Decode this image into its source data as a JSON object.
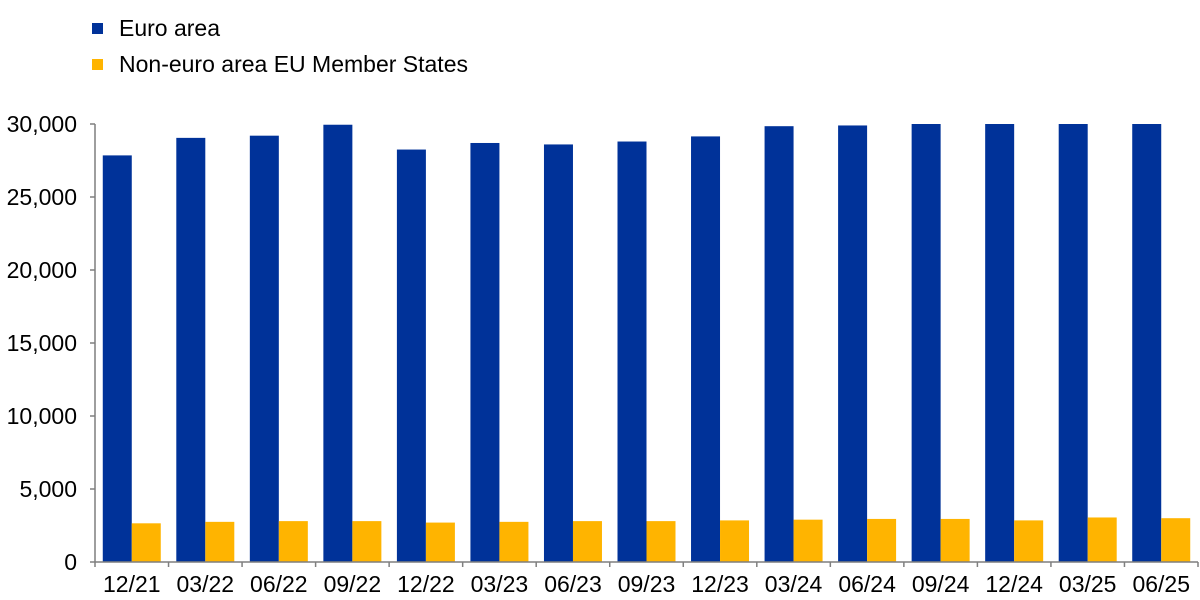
{
  "colors": {
    "euro": "#003299",
    "non_euro": "#FFB400",
    "axis": "#7f7f7f"
  },
  "chart_data": {
    "type": "bar",
    "categories": [
      "12/21",
      "03/22",
      "06/22",
      "09/22",
      "12/22",
      "03/23",
      "06/23",
      "09/23",
      "12/23",
      "03/24",
      "06/24",
      "09/24",
      "12/24",
      "03/25",
      "06/25"
    ],
    "series": [
      {
        "name": "Euro area",
        "color": "#003299",
        "values": [
          27850,
          29050,
          29200,
          29950,
          28250,
          28700,
          28600,
          28800,
          29150,
          29850,
          29900,
          30050,
          30050,
          30100,
          30100
        ]
      },
      {
        "name": "Non-euro area EU Member States",
        "color": "#FFB400",
        "values": [
          2650,
          2750,
          2800,
          2800,
          2700,
          2750,
          2800,
          2800,
          2850,
          2900,
          2950,
          2950,
          2850,
          3050,
          3000
        ]
      }
    ],
    "yticks": [
      "0",
      "5,000",
      "10,000",
      "15,000",
      "20,000",
      "25,000",
      "30,000"
    ],
    "ytick_values": [
      0,
      5000,
      10000,
      15000,
      20000,
      25000,
      30000
    ],
    "ylim": [
      0,
      30000
    ],
    "grid": false,
    "legend": "top-left"
  }
}
